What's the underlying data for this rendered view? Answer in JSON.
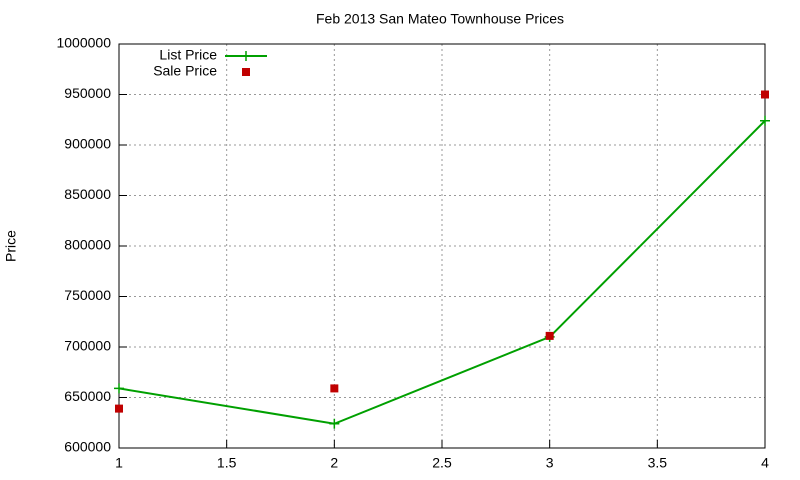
{
  "chart_data": {
    "type": "line",
    "title": "Feb 2013 San Mateo Townhouse Prices",
    "y_label": "Price",
    "x": [
      1,
      2,
      3,
      4
    ],
    "series": [
      {
        "name": "List Price",
        "color": "#00a000",
        "style": "linespoints",
        "values": [
          659000,
          624000,
          710000,
          924000
        ]
      },
      {
        "name": "Sale Price",
        "color": "#c00000",
        "style": "points",
        "values": [
          639000,
          659000,
          711000,
          950000
        ]
      }
    ],
    "xlim": [
      1,
      4
    ],
    "xticks": [
      1,
      1.5,
      2,
      2.5,
      3,
      3.5,
      4
    ],
    "ylim": [
      600000,
      1000000
    ],
    "yticks": [
      600000,
      650000,
      700000,
      750000,
      800000,
      850000,
      900000,
      950000,
      1000000
    ],
    "grid": true,
    "legend": "top left"
  }
}
